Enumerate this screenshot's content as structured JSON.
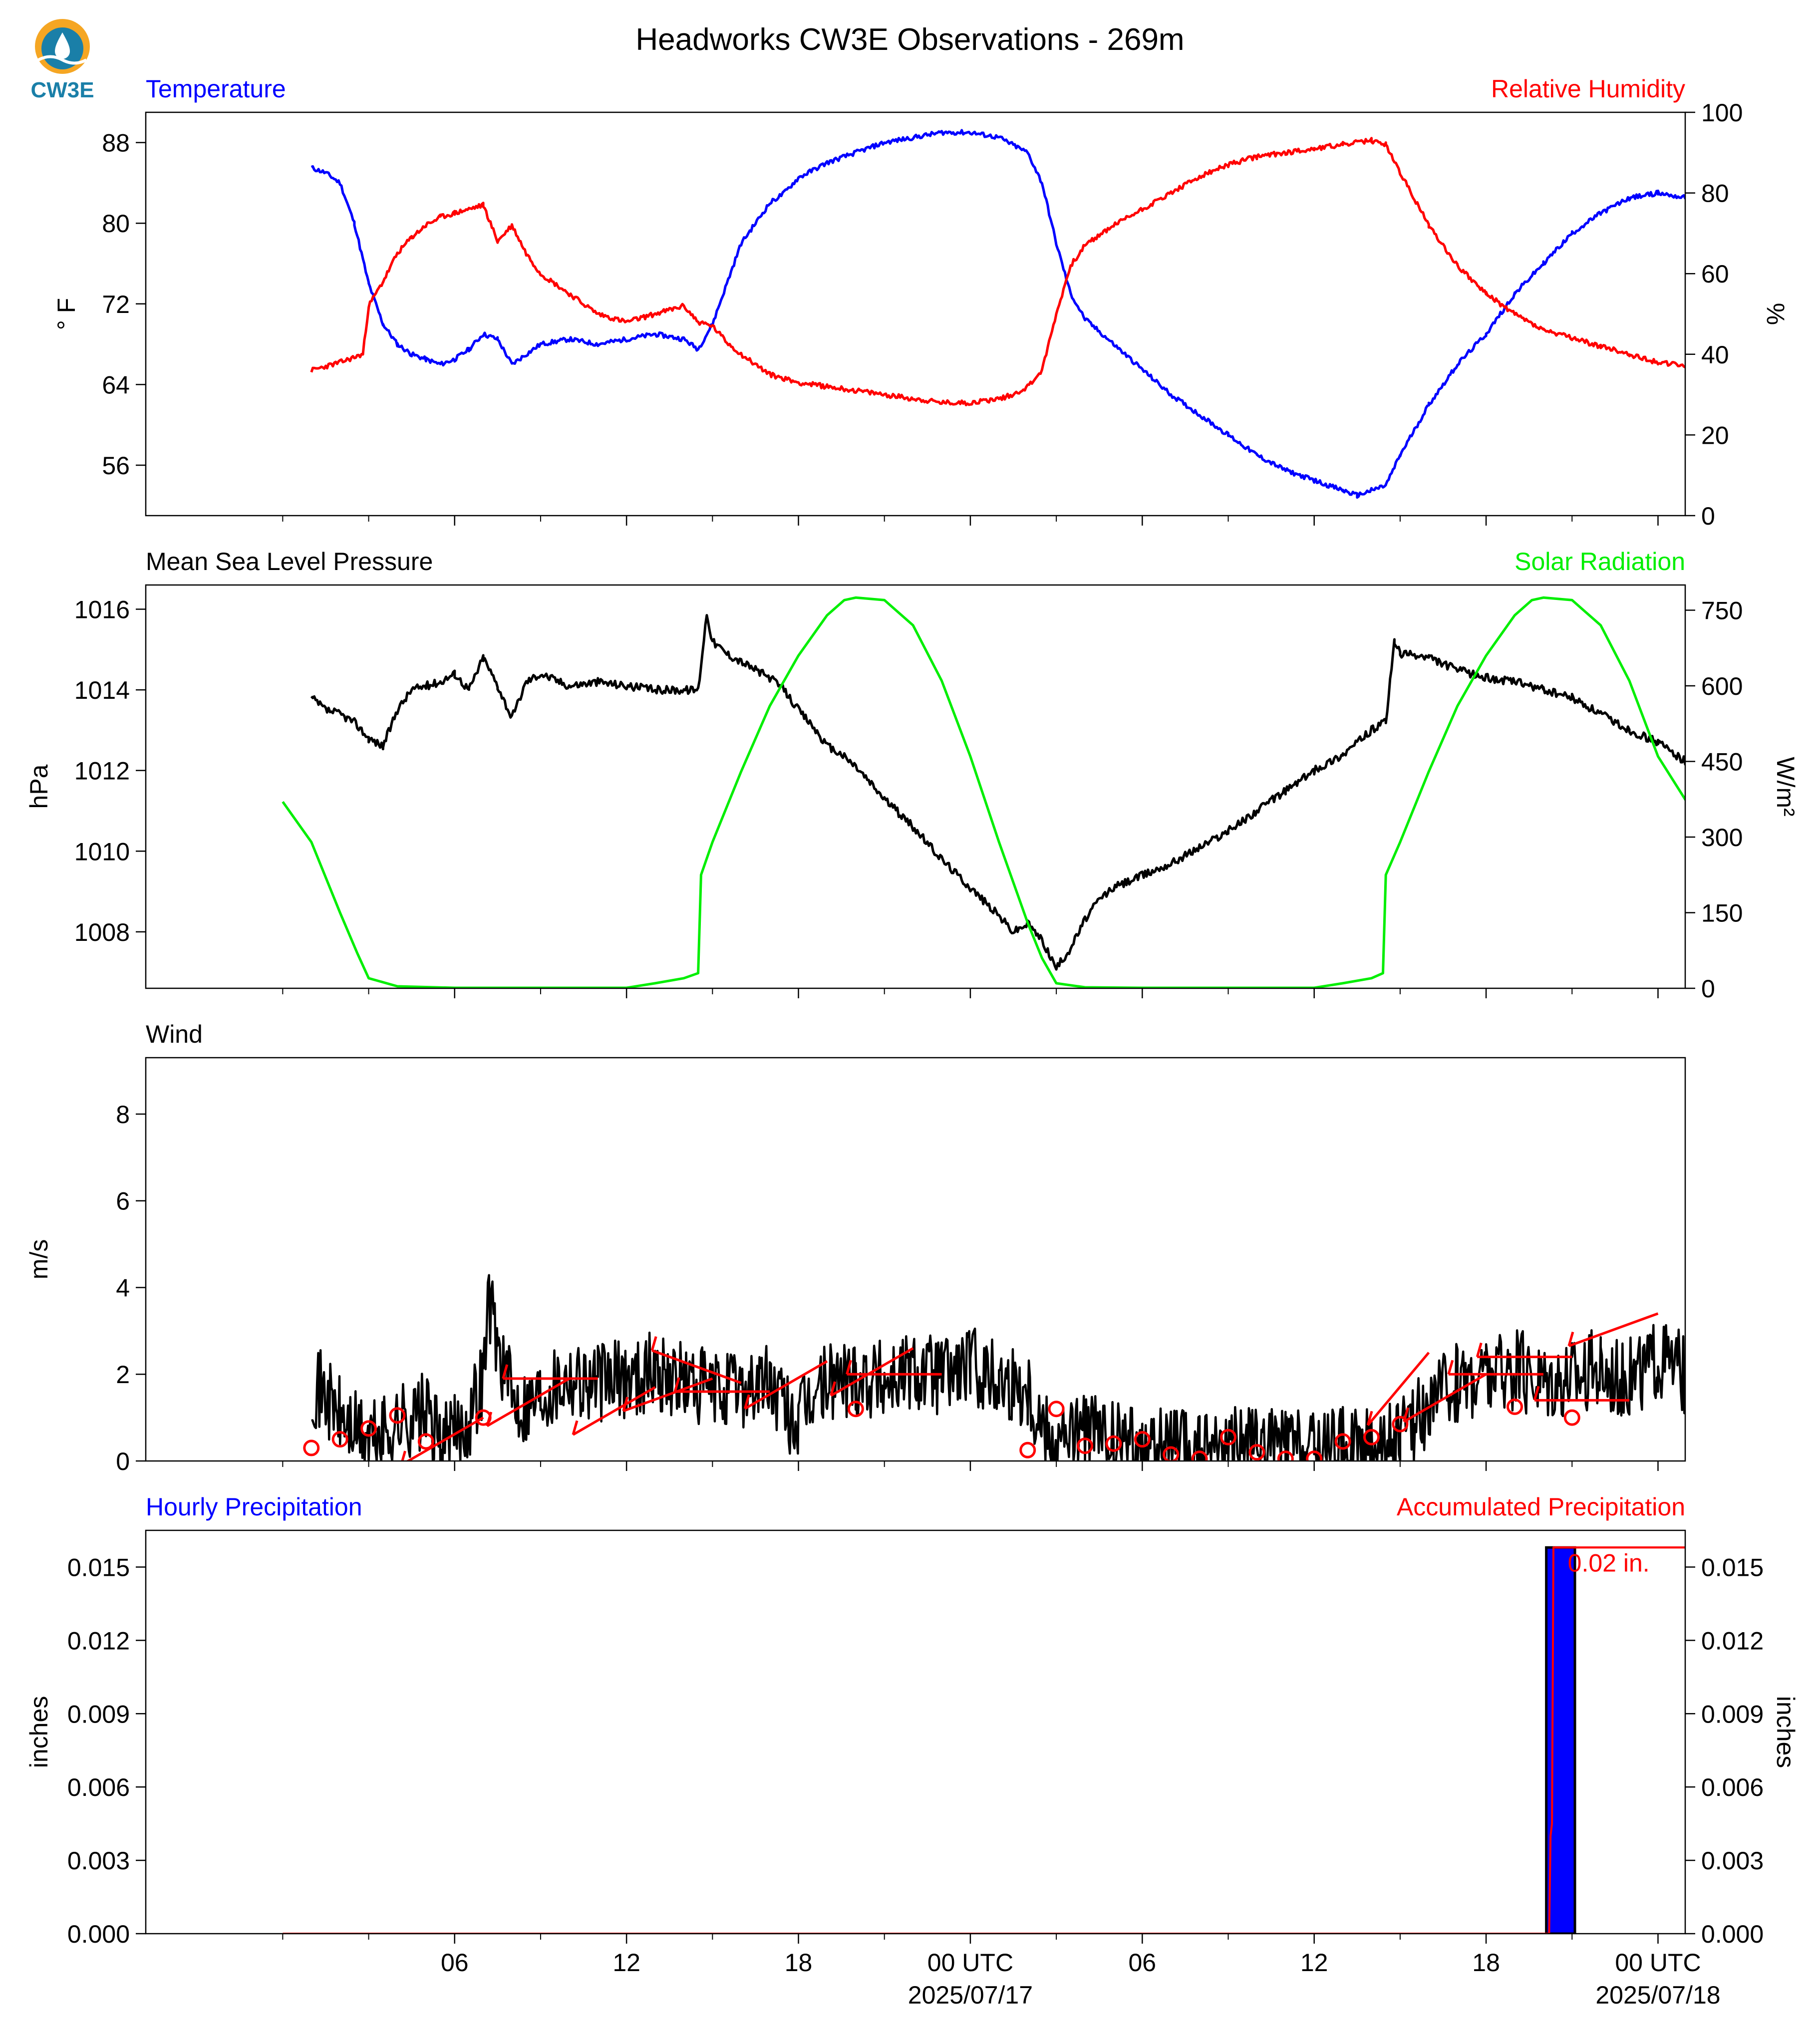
{
  "title": "Headworks CW3E Observations - 269m",
  "logo_text": "CW3E",
  "colors": {
    "temperature": "#0000ff",
    "humidity": "#ff0000",
    "pressure": "#000000",
    "solar": "#00ee00",
    "wind": "#000000",
    "barbs": "#ff0000",
    "hourly_precip": "#0000ff",
    "accum_precip": "#ff0000"
  },
  "x_axis": {
    "ticks": [
      {
        "h": 6,
        "label": "06"
      },
      {
        "h": 12,
        "label": "12"
      },
      {
        "h": 18,
        "label": "18"
      },
      {
        "h": 24,
        "label": "00 UTC",
        "sub": "2025/07/17"
      },
      {
        "h": 30,
        "label": "06"
      },
      {
        "h": 36,
        "label": "12"
      },
      {
        "h": 42,
        "label": "18"
      },
      {
        "h": 48,
        "label": "00 UTC",
        "sub": "2025/07/18"
      }
    ]
  },
  "chart_data": [
    {
      "type": "line",
      "panel": "temperature-humidity",
      "left_title": "Temperature",
      "right_title": "Relative Humidity",
      "ylabel": "° F",
      "ylabel_right": "%",
      "ylim": [
        51,
        91
      ],
      "yticks": [
        56,
        64,
        72,
        80,
        88
      ],
      "ylim_right": [
        0,
        100
      ],
      "yticks_right": [
        0,
        20,
        40,
        60,
        80,
        100
      ],
      "x_unit": "hours from 2025/07/16 00 UTC",
      "series": [
        {
          "name": "Temperature",
          "axis": "left",
          "x": [
            1,
            1.5,
            2,
            2.5,
            3,
            3.5,
            4,
            4.5,
            5,
            5.5,
            6,
            6.5,
            7,
            7.5,
            8,
            8.5,
            9,
            10,
            11,
            12,
            13,
            14,
            14.5,
            15,
            15.5,
            16,
            17,
            17.5,
            18,
            19,
            20,
            21,
            22,
            23,
            24,
            25,
            26,
            26.5,
            27,
            27.5,
            28,
            29,
            30,
            31,
            32,
            33,
            34,
            35,
            36,
            37,
            37.5,
            38,
            38.5,
            39,
            40,
            41,
            42,
            43,
            44,
            45,
            46,
            47,
            48,
            49
          ],
          "y": [
            85.5,
            85,
            84,
            80,
            74,
            70,
            68,
            67,
            66.5,
            66,
            66.5,
            67.5,
            69,
            68.5,
            66,
            67,
            68,
            68.5,
            68,
            68.5,
            69,
            68.5,
            67.5,
            70,
            74,
            78,
            82,
            83,
            84.5,
            86,
            87,
            88,
            88.5,
            89,
            89,
            88.5,
            87,
            84,
            78,
            73,
            70.5,
            68,
            65.5,
            63,
            61,
            59,
            57,
            55.5,
            54.5,
            53.5,
            53,
            53.5,
            54,
            57,
            62,
            66,
            69,
            73,
            76,
            79,
            81,
            82.5,
            83,
            82.5
          ]
        },
        {
          "name": "Relative Humidity",
          "axis": "right",
          "x": [
            1,
            2,
            2.8,
            3,
            3.5,
            4,
            4.5,
            5,
            5.5,
            6,
            6.5,
            7,
            7.5,
            8,
            8.5,
            9,
            10,
            11,
            12,
            13,
            14,
            14.5,
            15,
            15.5,
            16,
            17,
            18,
            19,
            20,
            21,
            22,
            23,
            24,
            25,
            25.5,
            26,
            26.5,
            27,
            27.5,
            28,
            29,
            30,
            31,
            32,
            33,
            34,
            35,
            36,
            37,
            38,
            38.5,
            39,
            40,
            41,
            42,
            43,
            44,
            45,
            46,
            47,
            48,
            49
          ],
          "y": [
            36,
            38,
            40,
            52,
            58,
            65,
            69,
            72,
            74,
            75,
            76,
            77,
            68,
            72,
            65,
            60,
            55,
            50,
            48,
            50,
            52,
            48,
            47,
            43,
            40,
            35,
            33,
            32,
            31,
            30,
            29,
            28,
            28,
            29,
            30,
            32,
            36,
            50,
            62,
            67,
            72,
            76,
            80,
            84,
            87,
            89,
            90,
            91,
            92,
            93,
            92,
            85,
            72,
            62,
            55,
            50,
            46,
            44,
            42,
            40,
            38,
            37
          ]
        }
      ]
    },
    {
      "type": "line",
      "panel": "pressure-solar",
      "left_title": "Mean Sea Level Pressure",
      "right_title": "Solar Radiation",
      "ylabel": "hPa",
      "ylabel_right": "W/m²",
      "ylim": [
        1006.6,
        1016.6
      ],
      "yticks": [
        1008,
        1010,
        1012,
        1014,
        1016
      ],
      "ylim_right": [
        0,
        800
      ],
      "yticks_right": [
        0,
        150,
        300,
        450,
        600,
        750
      ],
      "x_unit": "hours from 2025/07/16 00 UTC",
      "series": [
        {
          "name": "Mean Sea Level Pressure",
          "axis": "left",
          "x": [
            1,
            1.5,
            2,
            2.5,
            3,
            3.5,
            4,
            4.5,
            5,
            5.5,
            6,
            6.5,
            7,
            7.5,
            8,
            8.5,
            9,
            10,
            11,
            12,
            13,
            14,
            14.5,
            14.8,
            15,
            15.5,
            16,
            16.5,
            17,
            17.5,
            18,
            18.5,
            19,
            19.5,
            20,
            21,
            22,
            23,
            24,
            25,
            25.5,
            26,
            26.5,
            27,
            27.5,
            28,
            28.5,
            29,
            30,
            31,
            32,
            33,
            34,
            35,
            36,
            37,
            38,
            38.5,
            38.8,
            39,
            40,
            41,
            42,
            43,
            44,
            45,
            46,
            47,
            48,
            49
          ],
          "y": [
            1013.8,
            1013.5,
            1013.4,
            1013.2,
            1012.8,
            1012.6,
            1013.5,
            1014,
            1014.1,
            1014.2,
            1014.4,
            1014.0,
            1014.8,
            1014.1,
            1013.3,
            1014.2,
            1014.4,
            1014.1,
            1014.2,
            1014.1,
            1014.0,
            1014.0,
            1014.0,
            1015.9,
            1015.2,
            1014.9,
            1014.7,
            1014.5,
            1014.3,
            1014.0,
            1013.5,
            1013.1,
            1012.6,
            1012.4,
            1012.1,
            1011.3,
            1010.6,
            1009.8,
            1009.1,
            1008.4,
            1008.0,
            1008.2,
            1007.8,
            1007.1,
            1007.6,
            1008.3,
            1008.8,
            1009.1,
            1009.4,
            1009.7,
            1010.1,
            1010.5,
            1011.0,
            1011.5,
            1012.0,
            1012.4,
            1013.0,
            1013.2,
            1015.2,
            1014.9,
            1014.8,
            1014.5,
            1014.3,
            1014.2,
            1014.0,
            1013.8,
            1013.4,
            1013.0,
            1012.7,
            1012.2
          ]
        },
        {
          "name": "Solar Radiation",
          "axis": "right",
          "x": [
            0,
            1,
            2,
            2.6,
            3,
            4,
            6,
            8,
            10,
            12,
            13,
            14,
            14.5,
            14.6,
            15,
            16,
            17,
            18,
            19,
            19.6,
            20,
            21,
            22,
            23,
            24,
            25,
            26,
            26.5,
            27,
            28,
            30,
            32,
            34,
            36,
            37,
            38,
            38.4,
            38.5,
            39,
            40,
            41,
            42,
            43,
            43.6,
            44,
            45,
            46,
            47,
            48,
            49
          ],
          "y": [
            370,
            290,
            150,
            70,
            20,
            4,
            1,
            1,
            1,
            1,
            10,
            20,
            30,
            225,
            290,
            430,
            560,
            660,
            740,
            770,
            775,
            770,
            720,
            610,
            460,
            290,
            130,
            60,
            10,
            2,
            1,
            1,
            1,
            1,
            10,
            20,
            30,
            225,
            290,
            430,
            560,
            660,
            740,
            770,
            775,
            770,
            720,
            610,
            460,
            370
          ]
        }
      ]
    },
    {
      "type": "line",
      "panel": "wind",
      "left_title": "Wind",
      "ylabel": "m/s",
      "ylim": [
        0,
        9.3
      ],
      "yticks": [
        0,
        2,
        4,
        6,
        8
      ],
      "x_unit": "hours from 2025/07/16 00 UTC",
      "series": [
        {
          "name": "Wind",
          "x": [
            1,
            1.5,
            2,
            2.5,
            3,
            3.5,
            4,
            4.5,
            5,
            5.5,
            6,
            6.5,
            7,
            7.2,
            7.5,
            8,
            8.5,
            9,
            10,
            11,
            12,
            13,
            14,
            15,
            16,
            17,
            17.5,
            18,
            18.5,
            19,
            20,
            21,
            22,
            23,
            24,
            25,
            26,
            26.5,
            27,
            28,
            29,
            30,
            31,
            32,
            33,
            34,
            35,
            36,
            37,
            38,
            39,
            40,
            41,
            42,
            43,
            44,
            45,
            46,
            47,
            48,
            49
          ],
          "y": [
            1.8,
            1.5,
            1.0,
            0.7,
            0.5,
            0.6,
            0.9,
            1.0,
            1.1,
            0.4,
            0.6,
            1.0,
            2.0,
            3.8,
            2.7,
            1.5,
            1.3,
            1.6,
            2.0,
            1.8,
            1.9,
            2.1,
            1.8,
            1.6,
            1.7,
            1.8,
            1.2,
            0.8,
            1.5,
            1.8,
            2.0,
            1.9,
            2.1,
            2.0,
            2.2,
            1.9,
            1.7,
            0.9,
            0.5,
            0.7,
            0.4,
            0.3,
            0.3,
            0.2,
            0.4,
            0.3,
            0.3,
            0.2,
            0.3,
            0.3,
            0.5,
            1.3,
            1.8,
            2.0,
            2.1,
            1.9,
            2.0,
            2.1,
            1.9,
            2.3,
            2.0
          ]
        }
      ],
      "barbs": [
        {
          "x": 1,
          "y": 0.3,
          "calm": true
        },
        {
          "x": 2,
          "y": 0.5,
          "calm": true
        },
        {
          "x": 3,
          "y": 0.75,
          "calm": true
        },
        {
          "x": 4,
          "y": 1.05,
          "calm": true
        },
        {
          "x": 5,
          "y": 0.45,
          "calm": true
        },
        {
          "x": 7,
          "y": 1.0,
          "calm": true
        },
        {
          "x": 7,
          "y": 1.0,
          "dir": 300,
          "speed": 2.0
        },
        {
          "x": 10,
          "y": 1.9,
          "dir": 300,
          "speed": 2.2
        },
        {
          "x": 11,
          "y": 1.9,
          "dir": 270,
          "speed": 2.5
        },
        {
          "x": 13,
          "y": 1.7,
          "dir": 300,
          "speed": 2.3
        },
        {
          "x": 15,
          "y": 1.9,
          "dir": 290,
          "speed": 2.1
        },
        {
          "x": 16,
          "y": 1.8,
          "dir": 250,
          "speed": 2.0
        },
        {
          "x": 17,
          "y": 1.6,
          "dir": 270,
          "speed": 2.0
        },
        {
          "x": 19,
          "y": 2.3,
          "dir": 300,
          "speed": 2.4
        },
        {
          "x": 20,
          "y": 1.2,
          "calm": true
        },
        {
          "x": 22,
          "y": 2.6,
          "dir": 300,
          "speed": 2.6
        },
        {
          "x": 23,
          "y": 2.0,
          "dir": 270,
          "speed": 2.2
        },
        {
          "x": 26,
          "y": 0.25,
          "calm": true
        },
        {
          "x": 27,
          "y": 1.2,
          "calm": true
        },
        {
          "x": 28,
          "y": 0.35,
          "calm": true
        },
        {
          "x": 29,
          "y": 0.4,
          "calm": true
        },
        {
          "x": 30,
          "y": 0.5,
          "calm": true
        },
        {
          "x": 31,
          "y": 0.15,
          "calm": true
        },
        {
          "x": 32,
          "y": 0.05,
          "calm": true
        },
        {
          "x": 33,
          "y": 0.55,
          "calm": true
        },
        {
          "x": 34,
          "y": 0.2,
          "calm": true
        },
        {
          "x": 35,
          "y": 0.05,
          "calm": true
        },
        {
          "x": 36,
          "y": 0.05,
          "calm": true
        },
        {
          "x": 37,
          "y": 0.45,
          "calm": true
        },
        {
          "x": 38,
          "y": 0.55,
          "calm": true
        },
        {
          "x": 39,
          "y": 0.85,
          "calm": true
        },
        {
          "x": 40,
          "y": 2.5,
          "dir": 320,
          "speed": 2.8
        },
        {
          "x": 42,
          "y": 2.0,
          "dir": 300,
          "speed": 2.4
        },
        {
          "x": 43,
          "y": 1.25,
          "calm": true
        },
        {
          "x": 44,
          "y": 2.0,
          "dir": 270,
          "speed": 2.3
        },
        {
          "x": 45,
          "y": 1.0,
          "calm": true
        },
        {
          "x": 45,
          "y": 2.4,
          "dir": 270,
          "speed": 2.0
        },
        {
          "x": 47,
          "y": 1.4,
          "dir": 270,
          "speed": 2.0
        },
        {
          "x": 48,
          "y": 3.4,
          "dir": 290,
          "speed": 2.1
        }
      ]
    },
    {
      "type": "bar",
      "panel": "precipitation",
      "left_title": "Hourly Precipitation",
      "right_title": "Accumulated Precipitation",
      "ylabel": "inches",
      "ylabel_right": "inches",
      "ylim": [
        0,
        0.0165
      ],
      "yticks": [
        0.0,
        0.003,
        0.006,
        0.009,
        0.012,
        0.015
      ],
      "ylim_right": [
        0,
        0.0165
      ],
      "yticks_right": [
        0.0,
        0.003,
        0.006,
        0.009,
        0.012,
        0.015
      ],
      "x_unit": "hours from 2025/07/16 00 UTC",
      "series": [
        {
          "name": "Hourly Precipitation",
          "bars": [
            {
              "x_start": 44.1,
              "x_end": 45.1,
              "value": 0.0158
            }
          ]
        },
        {
          "name": "Accumulated Precipitation",
          "x": [
            0,
            44.2,
            44.25,
            44.3,
            44.35,
            44.4,
            49
          ],
          "y": [
            0,
            0,
            0.004,
            0.0045,
            0.0158,
            0.0158,
            0.0158
          ]
        }
      ],
      "annotation": "0.02 in."
    }
  ]
}
